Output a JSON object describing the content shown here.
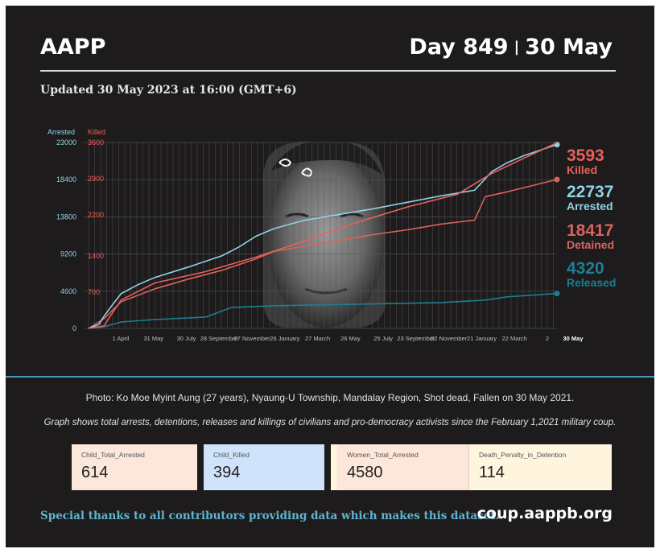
{
  "header": {
    "org": "AAPP",
    "day_label": "Day 849",
    "separator": "|",
    "date_label": "30 May"
  },
  "updated": "Updated 30 May 2023 at 16:00 (GMT+6)",
  "colors": {
    "background": "#1d1b1c",
    "arrested": "#8fd3e6",
    "killed": "#e8605a",
    "detained": "#d9635c",
    "released": "#1e7e95",
    "grid": "#5a5a5a"
  },
  "chart_data": {
    "type": "line",
    "left_axis": {
      "label": "Arrested",
      "ticks": [
        0,
        4600,
        9200,
        13800,
        18400,
        23000
      ],
      "range": [
        0,
        23000
      ]
    },
    "right_axis": {
      "label": "Killed",
      "ticks": [
        700,
        1400,
        2200,
        2900,
        3600
      ],
      "range": [
        0,
        3600
      ]
    },
    "x_ticks": [
      "1 April",
      "31 May",
      "30 July",
      "28 September",
      "27 November",
      "26 January",
      "27 March",
      "26 May",
      "25 July",
      "23 September",
      "22 November",
      "21 January",
      "22 March",
      "2",
      "30 May"
    ],
    "x_range": [
      "2021-02-01",
      "2023-05-30"
    ],
    "grid": true,
    "series": [
      {
        "name": "Arrested",
        "axis": "left",
        "points": [
          [
            "2021-02-01",
            0
          ],
          [
            "2021-02-20",
            500
          ],
          [
            "2021-03-01",
            1500
          ],
          [
            "2021-03-15",
            2800
          ],
          [
            "2021-04-01",
            4300
          ],
          [
            "2021-05-01",
            5400
          ],
          [
            "2021-06-01",
            6300
          ],
          [
            "2021-08-01",
            7600
          ],
          [
            "2021-10-01",
            9000
          ],
          [
            "2021-11-01",
            10100
          ],
          [
            "2021-12-01",
            11400
          ],
          [
            "2022-01-01",
            12300
          ],
          [
            "2022-02-01",
            12900
          ],
          [
            "2022-03-01",
            13400
          ],
          [
            "2022-05-01",
            14100
          ],
          [
            "2022-07-01",
            14800
          ],
          [
            "2022-09-01",
            15600
          ],
          [
            "2022-11-01",
            16400
          ],
          [
            "2023-01-01",
            17100
          ],
          [
            "2023-02-01",
            19400
          ],
          [
            "2023-03-01",
            20500
          ],
          [
            "2023-04-01",
            21400
          ],
          [
            "2023-05-30",
            22737
          ]
        ]
      },
      {
        "name": "Killed",
        "axis": "right",
        "points": [
          [
            "2021-02-01",
            0
          ],
          [
            "2021-03-01",
            50
          ],
          [
            "2021-03-15",
            280
          ],
          [
            "2021-04-01",
            550
          ],
          [
            "2021-06-01",
            880
          ],
          [
            "2021-09-01",
            1100
          ],
          [
            "2021-12-01",
            1380
          ],
          [
            "2022-03-01",
            1700
          ],
          [
            "2022-06-01",
            2050
          ],
          [
            "2022-09-01",
            2350
          ],
          [
            "2022-12-01",
            2600
          ],
          [
            "2023-02-01",
            3000
          ],
          [
            "2023-04-01",
            3300
          ],
          [
            "2023-05-30",
            3593
          ]
        ]
      },
      {
        "name": "Detained",
        "axis": "left",
        "points": [
          [
            "2021-02-01",
            0
          ],
          [
            "2021-03-01",
            1200
          ],
          [
            "2021-04-01",
            3300
          ],
          [
            "2021-06-01",
            4900
          ],
          [
            "2021-08-01",
            6100
          ],
          [
            "2021-10-01",
            7200
          ],
          [
            "2021-12-01",
            8600
          ],
          [
            "2022-01-01",
            9500
          ],
          [
            "2022-03-01",
            10200
          ],
          [
            "2022-05-01",
            10900
          ],
          [
            "2022-07-01",
            11600
          ],
          [
            "2022-09-01",
            12200
          ],
          [
            "2022-11-01",
            12900
          ],
          [
            "2023-01-01",
            13400
          ],
          [
            "2023-01-20",
            16300
          ],
          [
            "2023-03-01",
            16900
          ],
          [
            "2023-05-30",
            18417
          ]
        ]
      },
      {
        "name": "Released",
        "axis": "left",
        "points": [
          [
            "2021-02-01",
            0
          ],
          [
            "2021-03-01",
            200
          ],
          [
            "2021-04-01",
            800
          ],
          [
            "2021-06-01",
            1100
          ],
          [
            "2021-09-01",
            1400
          ],
          [
            "2021-10-18",
            2600
          ],
          [
            "2022-01-01",
            2800
          ],
          [
            "2022-06-01",
            3000
          ],
          [
            "2022-11-01",
            3200
          ],
          [
            "2023-01-20",
            3500
          ],
          [
            "2023-03-01",
            3900
          ],
          [
            "2023-05-30",
            4320
          ]
        ]
      }
    ],
    "end_labels": [
      {
        "value": "3593",
        "label": "Killed"
      },
      {
        "value": "22737",
        "label": "Arrested"
      },
      {
        "value": "18417",
        "label": "Detained"
      },
      {
        "value": "4320",
        "label": "Released"
      }
    ]
  },
  "captions": {
    "photo": "Photo: Ko Moe Myint Aung (27 years), Nyaung-U Township, Mandalay Region, Shot dead, Fallen on 30 May 2021.",
    "graph": "Graph shows total arrests, detentions, releases and killings of civilians and pro-democracy activists since the February 1,2021 military coup."
  },
  "cards": [
    {
      "label": "Child_Total_Arrested",
      "value": "614"
    },
    {
      "label": "Child_Killed",
      "value": "394"
    },
    {
      "label": "Women_Total_Arrested",
      "value": "4580"
    },
    {
      "label": "Death_Penalty_in_Detention",
      "value": "114"
    }
  ],
  "footer": {
    "thanks": "Special thanks to all contributors providing data which makes this dataset.",
    "site": "coup.aappb.org"
  }
}
